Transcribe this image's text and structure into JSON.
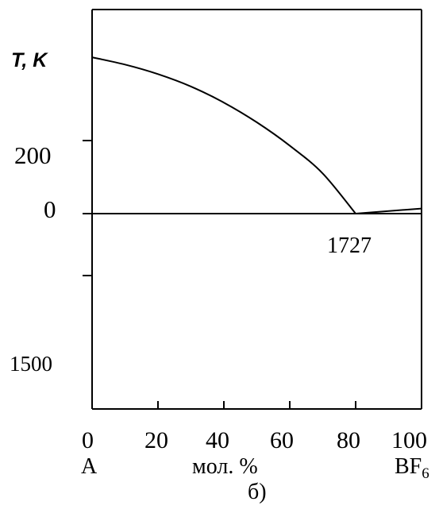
{
  "chart_data": {
    "type": "line",
    "ylabel": "T, K",
    "xlabel": "мол. %",
    "x_end_left": "A",
    "x_end_right_base": "BF",
    "x_end_right_sub": "6",
    "caption": "б)",
    "x_ticks": [
      "0",
      "20",
      "40",
      "60",
      "80",
      "100"
    ],
    "x_range": [
      0,
      100
    ],
    "y_labels": {
      "l200": "200",
      "l0": "0",
      "l1500": "1500"
    },
    "annotation": "1727",
    "series": [
      {
        "points": [
          [
            0,
            2.14
          ],
          [
            10,
            2.04
          ],
          [
            20,
            1.91
          ],
          [
            30,
            1.74
          ],
          [
            40,
            1.52
          ],
          [
            50,
            1.25
          ],
          [
            60,
            0.93
          ],
          [
            70,
            0.55
          ],
          [
            80,
            0.0
          ]
        ]
      },
      {
        "points": [
          [
            80,
            0.0
          ],
          [
            100,
            0.07
          ]
        ]
      }
    ],
    "grid": false,
    "colors": {
      "line": "#000000"
    }
  }
}
